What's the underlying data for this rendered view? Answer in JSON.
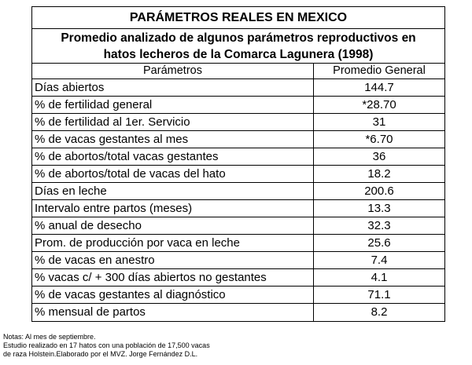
{
  "table": {
    "title": "PARÁMETROS REALES EN MEXICO",
    "subtitle_line1": "Promedio analizado de algunos parámetros reproductivos en",
    "subtitle_line2": "hatos lecheros de la Comarca Lagunera (1998)",
    "col_param_header": "Parámetros",
    "col_value_header": "Promedio General",
    "rows": [
      {
        "param": "Días abiertos",
        "value": "144.7"
      },
      {
        "param": "% de fertilidad general",
        "value": "*28.70"
      },
      {
        "param": "% de fertilidad al 1er. Servicio",
        "value": "31"
      },
      {
        "param": "% de vacas gestantes al mes",
        "value": "*6.70"
      },
      {
        "param": "% de abortos/total vacas gestantes",
        "value": "36"
      },
      {
        "param": "% de abortos/total de vacas del hato",
        "value": "18.2"
      },
      {
        "param": "Días en leche",
        "value": "200.6"
      },
      {
        "param": "Intervalo entre partos (meses)",
        "value": "13.3"
      },
      {
        "param": "% anual de desecho",
        "value": "32.3"
      },
      {
        "param": "Prom. de producción por vaca en leche",
        "value": "25.6"
      },
      {
        "param": "% de vacas en anestro",
        "value": "7.4"
      },
      {
        "param": "% vacas c/ + 300 días abiertos no gestantes",
        "value": "4.1"
      },
      {
        "param": "% de vacas gestantes al diagnóstico",
        "value": "71.1"
      },
      {
        "param": "% mensual de partos",
        "value": "8.2"
      }
    ]
  },
  "notes": {
    "line1": "Notas: Al mes de septiembre.",
    "line2": "Estudio realizado en 17 hatos con una población de 17,500 vacas",
    "line3": "de raza Holstein.Elaborado por el MVZ. Jorge Fernández D.L."
  }
}
